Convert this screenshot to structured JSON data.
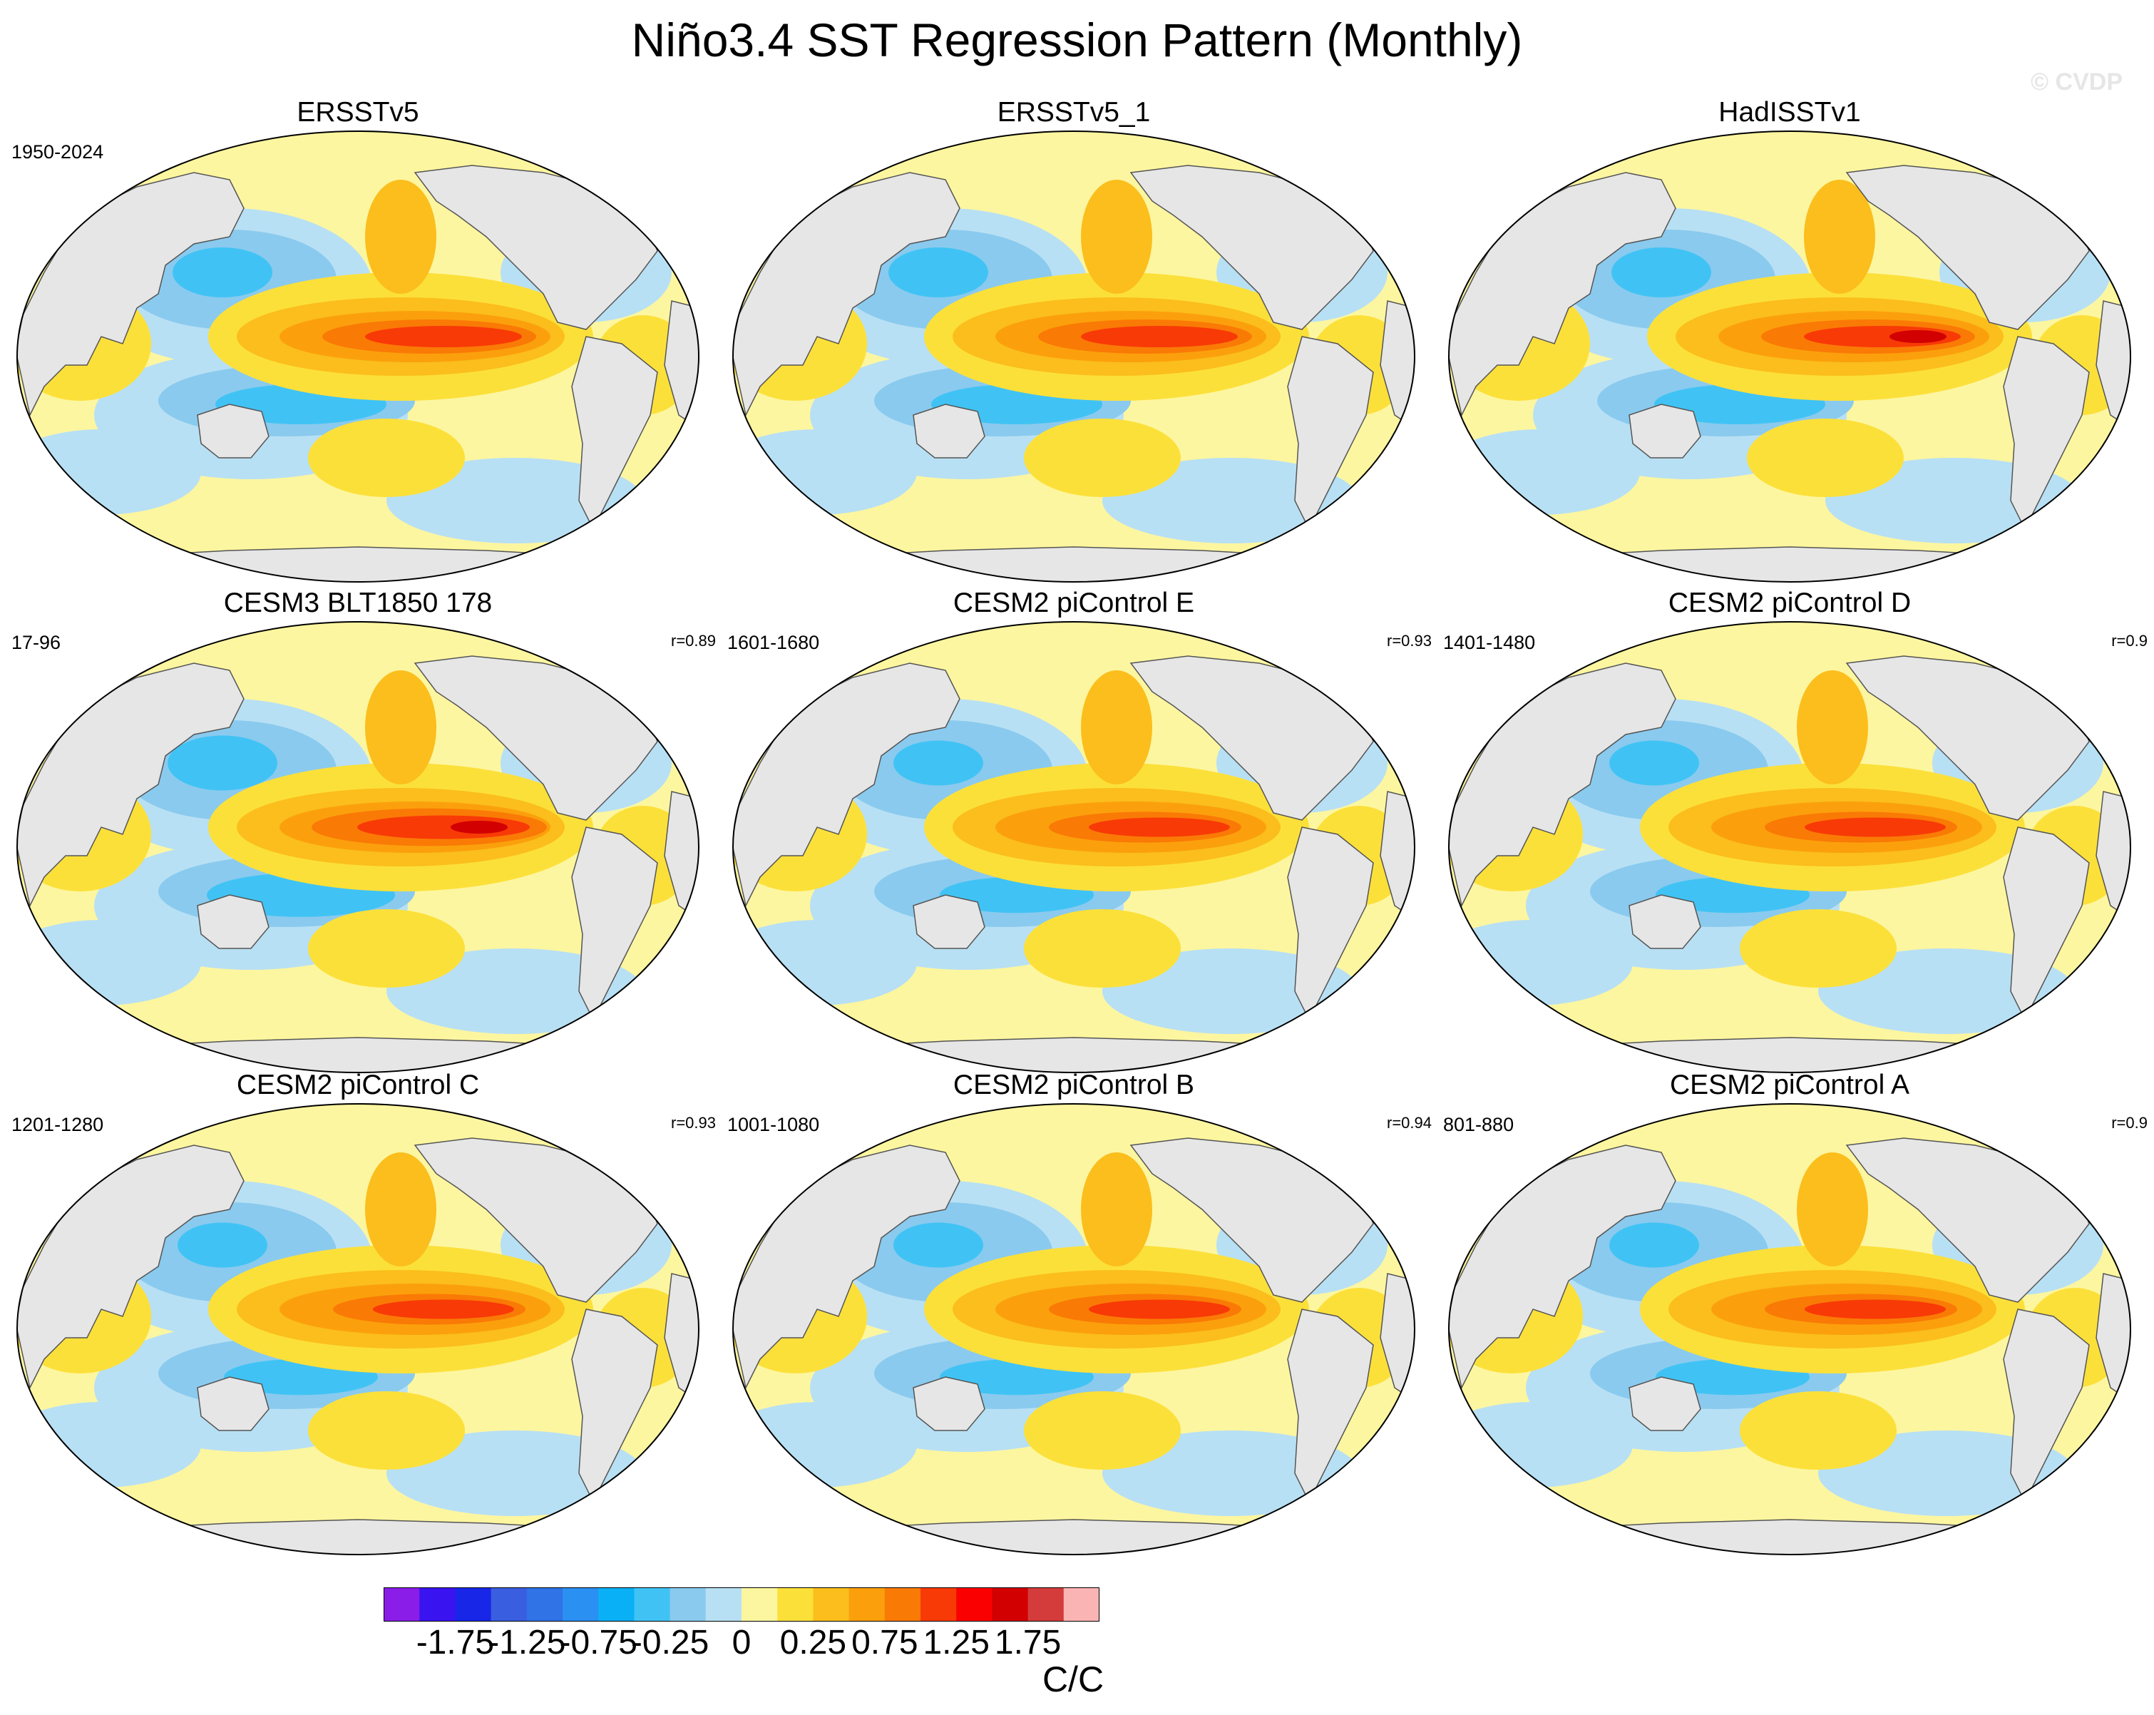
{
  "title": "Niño3.4 SST Regression Pattern (Monthly)",
  "watermark": "© CVDP",
  "panels": [
    {
      "title": "ERSSTv5",
      "period": "1950-2024",
      "corr": "",
      "variant": 0
    },
    {
      "title": "ERSSTv5_1",
      "period": "",
      "corr": "",
      "variant": 1
    },
    {
      "title": "HadISSTv1",
      "period": "",
      "corr": "",
      "variant": 2
    },
    {
      "title": "CESM3 BLT1850 178",
      "period": "17-96",
      "corr": "r=0.89",
      "variant": 3
    },
    {
      "title": "CESM2 piControl E",
      "period": "1601-1680",
      "corr": "r=0.93",
      "variant": 4
    },
    {
      "title": "CESM2 piControl D",
      "period": "1401-1480",
      "corr": "r=0.9",
      "variant": 4
    },
    {
      "title": "CESM2 piControl C",
      "period": "1201-1280",
      "corr": "r=0.93",
      "variant": 5
    },
    {
      "title": "CESM2 piControl B",
      "period": "1001-1080",
      "corr": "r=0.94",
      "variant": 5
    },
    {
      "title": "CESM2 piControl A",
      "period": "801-880",
      "corr": "r=0.9",
      "variant": 5
    }
  ],
  "colorbar": {
    "units": "C/C",
    "labels": [
      "-1.75",
      "-1.25",
      "-0.75",
      "-0.25",
      "0",
      "0.25",
      "0.75",
      "1.25",
      "1.75"
    ],
    "colors": [
      "#8a1ee8",
      "#3a14f0",
      "#1826e8",
      "#3a5ee0",
      "#2f73e6",
      "#2a90f2",
      "#0ab0f5",
      "#40c3f4",
      "#8acaee",
      "#b8e0f4",
      "#fdf6a0",
      "#fce03a",
      "#fbbe1c",
      "#fba00c",
      "#fa7a06",
      "#f83a06",
      "#fa0000",
      "#d20000",
      "#d43c3c",
      "#fbb4b4"
    ]
  },
  "palette": {
    "land": "#e6e6e6",
    "coast": "#555555",
    "ocean_zero": "#fdf6a0",
    "weak_neg": "#b8e0f4",
    "mid_neg": "#8acaee",
    "strong_neg": "#40c3f4",
    "weak_pos": "#fce03a",
    "mid_pos": "#fbbe1c",
    "strong_pos": "#fba00c",
    "hot1": "#fa7a06",
    "hot2": "#f83a06",
    "hot3": "#d20000"
  }
}
